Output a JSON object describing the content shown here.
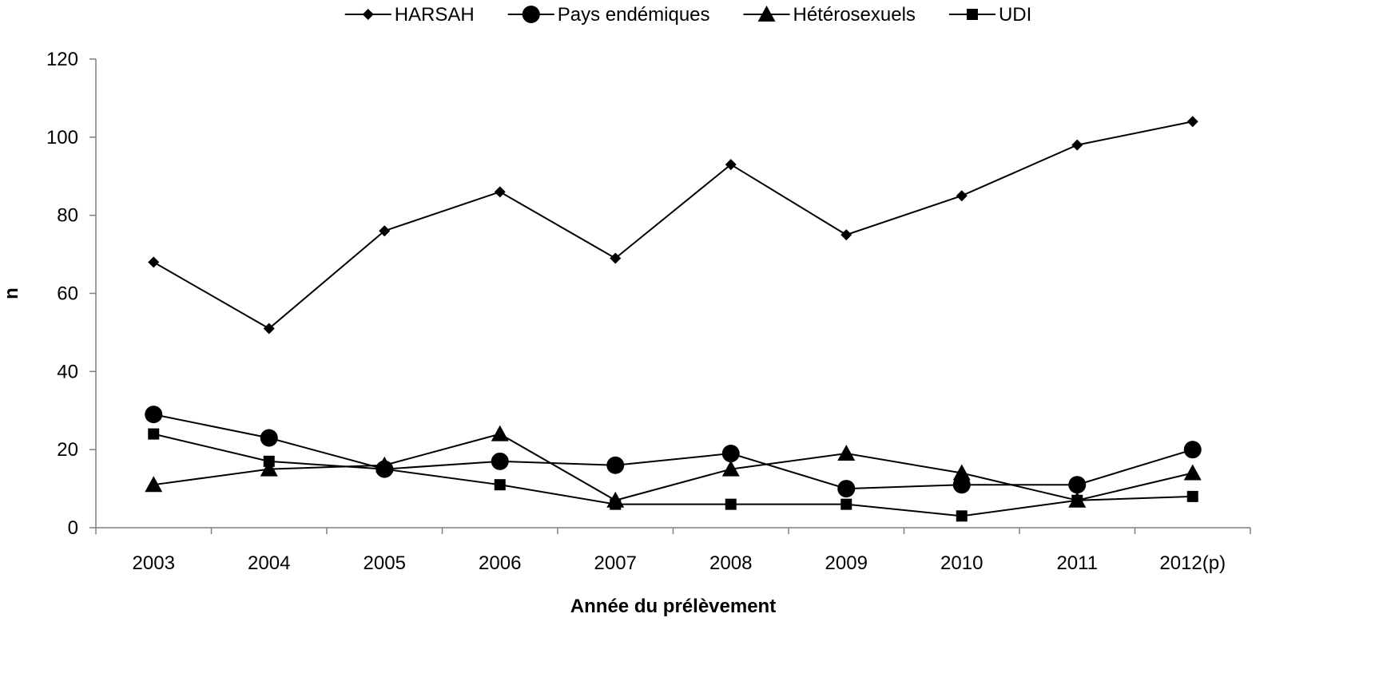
{
  "chart_data": {
    "type": "line",
    "categories": [
      "2003",
      "2004",
      "2005",
      "2006",
      "2007",
      "2008",
      "2009",
      "2010",
      "2011",
      "2012(p)"
    ],
    "series": [
      {
        "name": "HARSAH",
        "marker": "diamond",
        "values": [
          68,
          51,
          76,
          86,
          69,
          93,
          75,
          85,
          98,
          104
        ]
      },
      {
        "name": "Pays endémiques",
        "marker": "circle",
        "values": [
          29,
          23,
          15,
          17,
          16,
          19,
          10,
          11,
          11,
          20
        ]
      },
      {
        "name": "Hétérosexuels",
        "marker": "triangle",
        "values": [
          11,
          15,
          16,
          24,
          7,
          15,
          19,
          14,
          7,
          14
        ]
      },
      {
        "name": "UDI",
        "marker": "square",
        "values": [
          24,
          17,
          15,
          11,
          6,
          6,
          6,
          3,
          7,
          8
        ]
      }
    ],
    "xlabel": "Année du prélèvement",
    "ylabel": "n",
    "ylim": [
      0,
      120
    ],
    "yticks": [
      0,
      20,
      40,
      60,
      80,
      100,
      120
    ],
    "grid": false,
    "legend": "top",
    "line_color": "#000000"
  }
}
